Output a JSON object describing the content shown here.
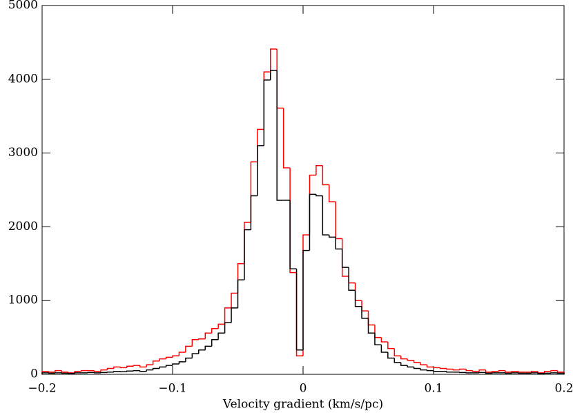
{
  "chart_data": {
    "type": "histogram",
    "xlabel": "Velocity gradient (km/s/pc)",
    "bins": [
      -0.2,
      -0.195,
      -0.19,
      -0.185,
      -0.18,
      -0.175,
      -0.17,
      -0.165,
      -0.16,
      -0.155,
      -0.15,
      -0.145,
      -0.14,
      -0.135,
      -0.13,
      -0.125,
      -0.12,
      -0.115,
      -0.11,
      -0.105,
      -0.1,
      -0.095,
      -0.09,
      -0.085,
      -0.08,
      -0.075,
      -0.07,
      -0.065,
      -0.06,
      -0.055,
      -0.05,
      -0.045,
      -0.04,
      -0.035,
      -0.03,
      -0.025,
      -0.02,
      -0.015,
      -0.01,
      -0.005,
      0,
      0.005,
      0.01,
      0.015,
      0.02,
      0.025,
      0.03,
      0.035,
      0.04,
      0.045,
      0.05,
      0.055,
      0.06,
      0.065,
      0.07,
      0.075,
      0.08,
      0.085,
      0.09,
      0.095,
      0.1,
      0.105,
      0.11,
      0.115,
      0.12,
      0.125,
      0.13,
      0.135,
      0.14,
      0.145,
      0.15,
      0.155,
      0.16,
      0.165,
      0.17,
      0.175,
      0.18,
      0.185,
      0.19,
      0.195,
      0.2
    ],
    "series": [
      {
        "color": "#ff0000",
        "values": [
          40,
          30,
          50,
          30,
          20,
          40,
          50,
          50,
          40,
          60,
          80,
          100,
          90,
          110,
          120,
          100,
          130,
          180,
          210,
          230,
          250,
          300,
          380,
          470,
          480,
          560,
          620,
          680,
          900,
          1100,
          1500,
          2060,
          2880,
          3320,
          4100,
          4410,
          3610,
          2800,
          1380,
          250,
          1890,
          2700,
          2830,
          2570,
          2340,
          1840,
          1330,
          1240,
          1000,
          860,
          670,
          500,
          440,
          350,
          250,
          210,
          190,
          160,
          130,
          100,
          90,
          80,
          70,
          60,
          70,
          50,
          40,
          60,
          30,
          40,
          50,
          30,
          40,
          30,
          30,
          40,
          20,
          40,
          50,
          30
        ]
      },
      {
        "color": "#000000",
        "values": [
          20,
          15,
          20,
          15,
          10,
          20,
          20,
          25,
          20,
          25,
          30,
          40,
          35,
          45,
          50,
          40,
          60,
          80,
          100,
          120,
          140,
          170,
          220,
          280,
          330,
          380,
          470,
          560,
          700,
          900,
          1280,
          1960,
          2420,
          3100,
          3990,
          4120,
          2360,
          2360,
          1430,
          330,
          1680,
          2440,
          2420,
          1890,
          1860,
          1700,
          1450,
          1140,
          920,
          760,
          560,
          400,
          300,
          220,
          160,
          120,
          100,
          80,
          60,
          50,
          40,
          40,
          30,
          30,
          25,
          20,
          20,
          25,
          15,
          20,
          20,
          15,
          20,
          15,
          15,
          20,
          10,
          15,
          20,
          15
        ]
      }
    ],
    "xlim": [
      -0.2,
      0.2
    ],
    "xticks": [
      {
        "value": -0.2,
        "label": "−0.2"
      },
      {
        "value": -0.1,
        "label": "−0.1"
      },
      0,
      0.1,
      0.2
    ],
    "ylim": [
      0,
      5000
    ],
    "yticks": [
      0,
      1000,
      2000,
      3000,
      4000,
      5000
    ]
  }
}
